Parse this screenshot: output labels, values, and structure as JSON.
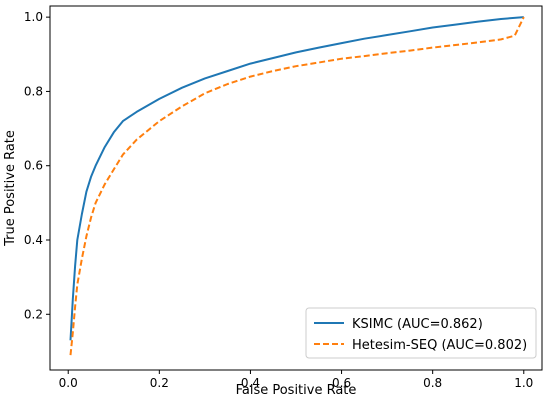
{
  "chart_data": {
    "type": "line",
    "title": "",
    "xlabel": "False Positive Rate",
    "ylabel": "True Positive Rate",
    "xlim": [
      -0.04,
      1.04
    ],
    "ylim": [
      0.05,
      1.03
    ],
    "xticks": [
      "0.0",
      "0.2",
      "0.4",
      "0.6",
      "0.8",
      "1.0"
    ],
    "yticks": [
      "0.2",
      "0.4",
      "0.6",
      "0.8",
      "1.0"
    ],
    "grid": false,
    "legend_position": "lower-right",
    "series": [
      {
        "name": "KSIMC (AUC=0.862)",
        "color": "#1f77b4",
        "style": "solid",
        "x": [
          0.005,
          0.01,
          0.015,
          0.02,
          0.03,
          0.04,
          0.05,
          0.06,
          0.08,
          0.1,
          0.12,
          0.15,
          0.2,
          0.25,
          0.3,
          0.35,
          0.4,
          0.45,
          0.5,
          0.55,
          0.6,
          0.65,
          0.7,
          0.75,
          0.8,
          0.85,
          0.9,
          0.95,
          1.0
        ],
        "y": [
          0.13,
          0.24,
          0.33,
          0.4,
          0.47,
          0.53,
          0.57,
          0.6,
          0.65,
          0.69,
          0.72,
          0.745,
          0.78,
          0.81,
          0.835,
          0.855,
          0.875,
          0.89,
          0.905,
          0.918,
          0.93,
          0.942,
          0.952,
          0.962,
          0.972,
          0.98,
          0.988,
          0.995,
          1.0
        ]
      },
      {
        "name": "Hetesim-SEQ (AUC=0.802)",
        "color": "#ff7f0e",
        "style": "dashed",
        "x": [
          0.005,
          0.01,
          0.015,
          0.02,
          0.03,
          0.04,
          0.05,
          0.06,
          0.08,
          0.1,
          0.12,
          0.15,
          0.2,
          0.25,
          0.3,
          0.35,
          0.4,
          0.45,
          0.5,
          0.55,
          0.6,
          0.65,
          0.7,
          0.75,
          0.8,
          0.85,
          0.9,
          0.95,
          0.98,
          1.0
        ],
        "y": [
          0.09,
          0.15,
          0.22,
          0.28,
          0.35,
          0.41,
          0.46,
          0.5,
          0.55,
          0.59,
          0.63,
          0.67,
          0.72,
          0.76,
          0.795,
          0.82,
          0.84,
          0.855,
          0.868,
          0.878,
          0.888,
          0.895,
          0.903,
          0.91,
          0.918,
          0.925,
          0.932,
          0.94,
          0.95,
          1.0
        ]
      }
    ]
  }
}
